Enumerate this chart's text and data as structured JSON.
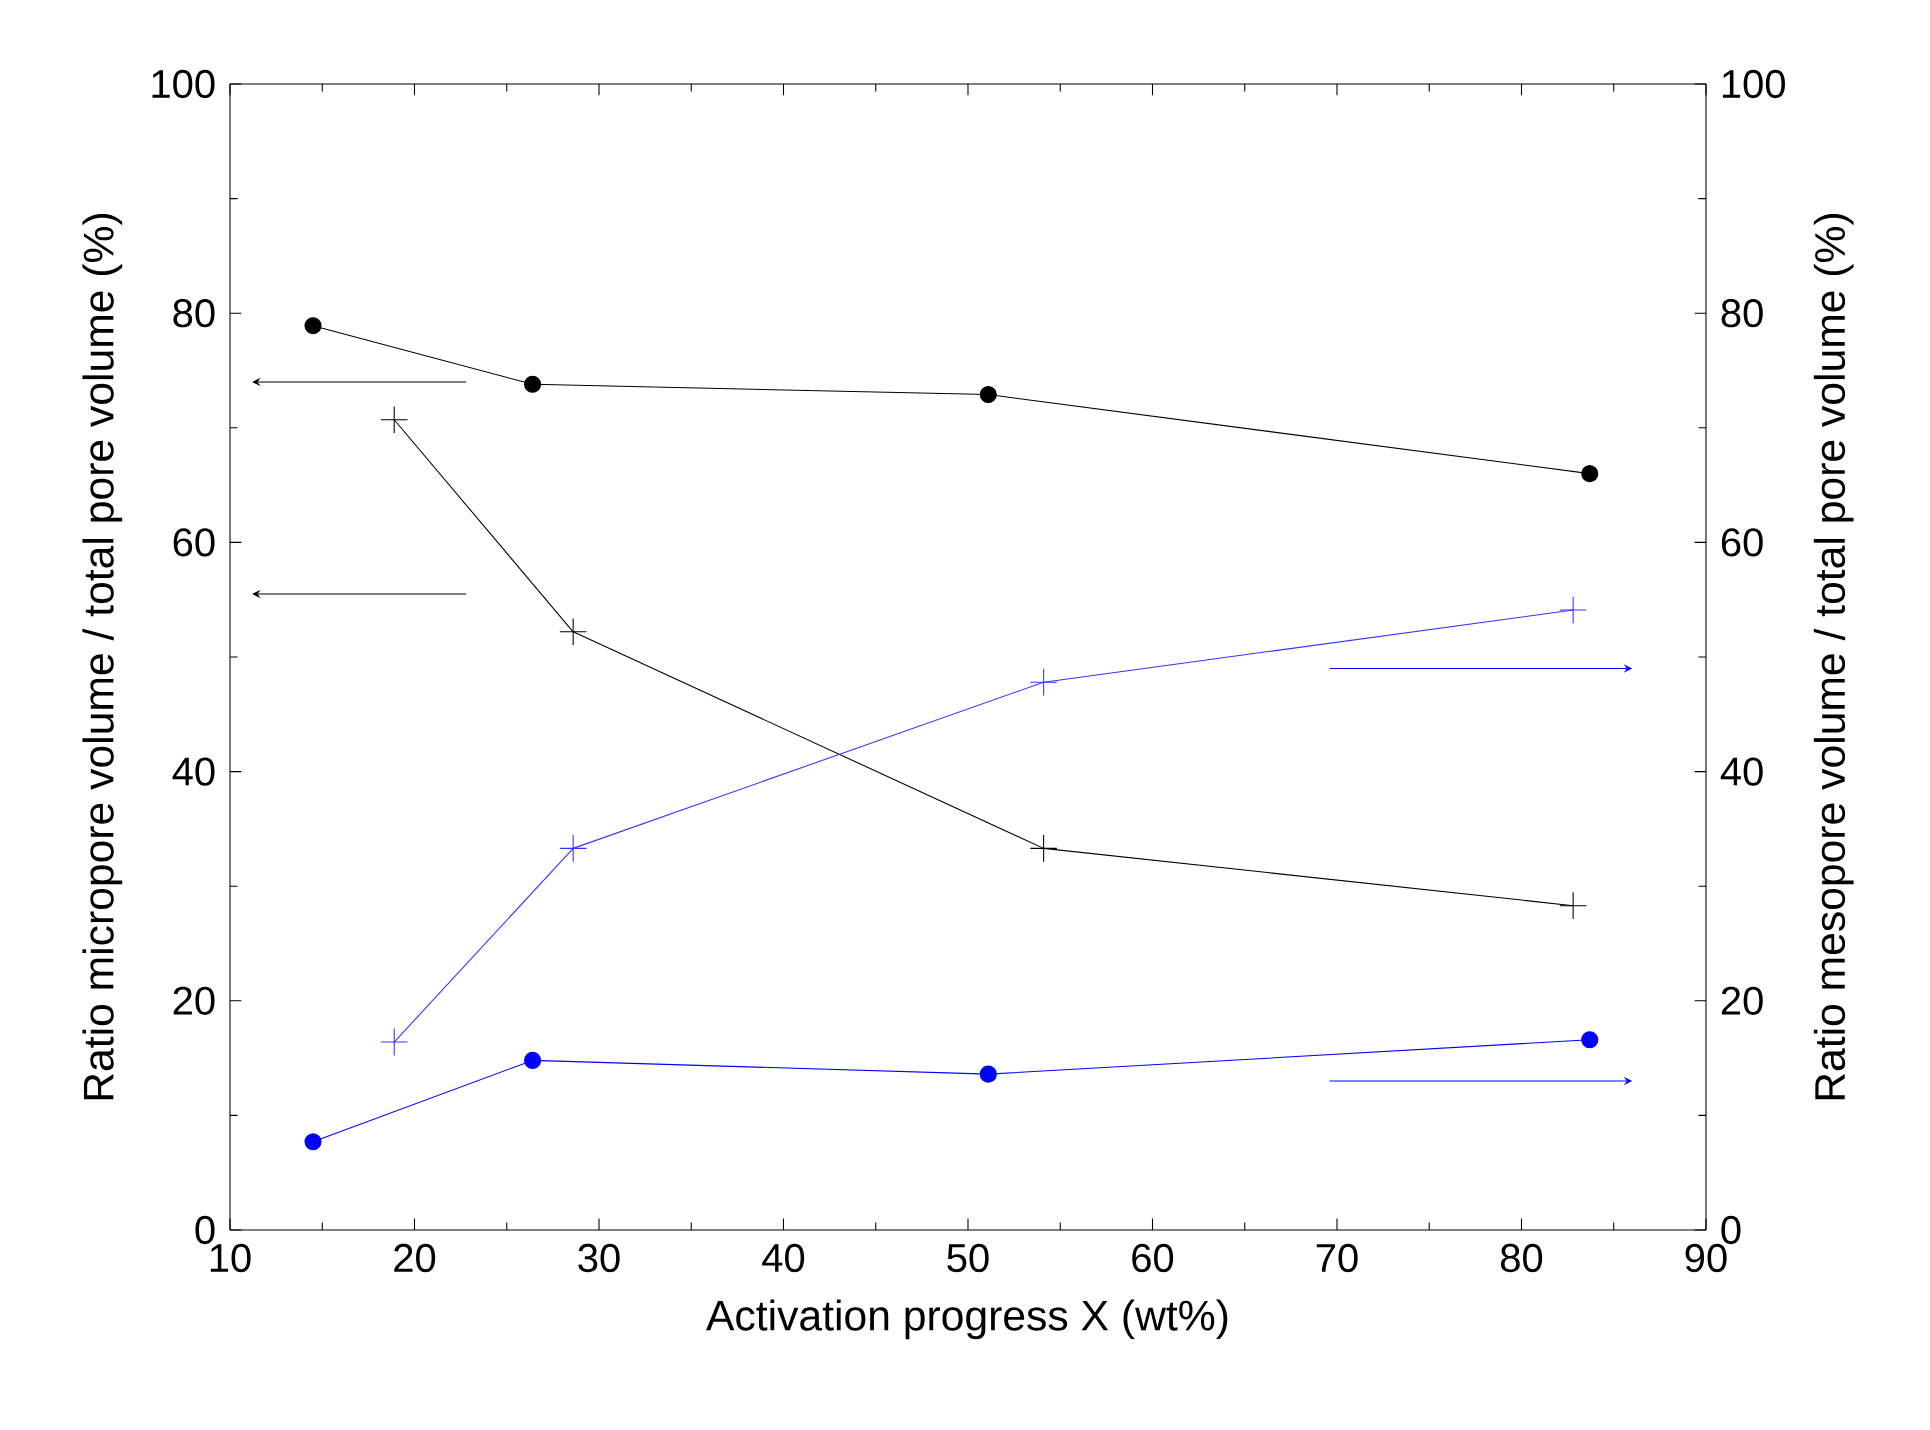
{
  "chart_data": {
    "type": "line",
    "xlabel": "Activation progress X (wt%)",
    "ylabel": "Ratio micropore volume / total pore volume (%)",
    "y2label": "Ratio mesopore volume / total pore volume (%)",
    "xlim": [
      10,
      90
    ],
    "xticks": [
      10,
      20,
      30,
      40,
      50,
      60,
      70,
      80,
      90
    ],
    "ylim": [
      0,
      100
    ],
    "yticks": [
      0,
      20,
      40,
      60,
      80,
      100
    ],
    "y2lim": [
      0,
      100
    ],
    "y2ticks": [
      0,
      20,
      40,
      60,
      80,
      100
    ],
    "grid": false,
    "series": [
      {
        "color": "#000000",
        "marker": "circle",
        "x": [
          14.5,
          26.4,
          51.1,
          83.7
        ],
        "values": [
          78.9,
          73.8,
          72.9,
          66.0
        ]
      },
      {
        "color": "#000000",
        "marker": "cross",
        "x": [
          18.9,
          28.6,
          54.1,
          82.8
        ],
        "values": [
          70.7,
          52.2,
          33.3,
          28.3
        ]
      },
      {
        "color": "#3333ff",
        "marker": "cross",
        "axis": "y2",
        "x": [
          18.9,
          28.6,
          54.1,
          82.8
        ],
        "values": [
          16.4,
          33.3,
          47.8,
          54.1
        ]
      },
      {
        "color": "#0000ff",
        "marker": "circle",
        "axis": "y2",
        "x": [
          14.5,
          26.4,
          51.1,
          83.7
        ],
        "values": [
          7.7,
          14.8,
          13.6,
          16.6
        ]
      }
    ]
  }
}
